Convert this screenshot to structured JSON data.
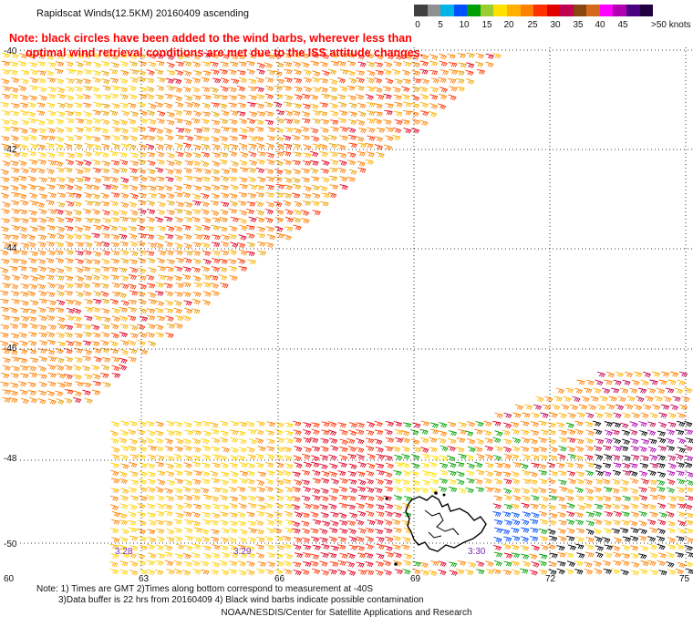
{
  "title": "Rapidscat Winds(12.5KM) 20160409 ascending",
  "note": {
    "line1": "Note: black circles have been added to the wind barbs, wherever less than",
    "line2": "optimal wind retrieval conditions are met due to the ISS attitude changes."
  },
  "legend": {
    "labels": [
      "0",
      "5",
      "10",
      "15",
      "20",
      "25",
      "30",
      "35",
      "40",
      "45",
      ">50 knots"
    ],
    "colors": [
      "#404040",
      "#909090",
      "#00b4e6",
      "#0050ff",
      "#00a000",
      "#9acd32",
      "#ffe000",
      "#ffb000",
      "#ff8000",
      "#ff3000",
      "#e00000",
      "#c00050",
      "#8b4513",
      "#d2691e",
      "#ff00ff",
      "#b000b0",
      "#4b0082",
      "#200040"
    ]
  },
  "axes": {
    "lat_labels": [
      "-40",
      "-42",
      "-44",
      "-46",
      "-48",
      "-50"
    ],
    "lon_labels": [
      "60",
      "63",
      "66",
      "69",
      "72",
      "75"
    ]
  },
  "times": [
    "3:28",
    "3:29",
    "3:30"
  ],
  "footnote": {
    "line1": "Note: 1) Times are GMT 2)Times along bottom correspond to measurement at -40S",
    "line2": "3)Data buffer is 22 hrs from 20160409 4) Black wind barbs indicate possible contamination"
  },
  "credit": "NOAA/NESDIS/Center for Satellite Applications and Research"
}
